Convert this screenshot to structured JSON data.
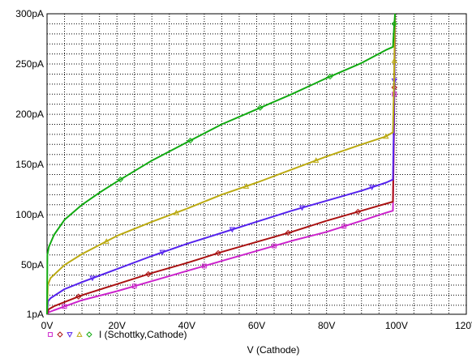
{
  "chart_data": {
    "type": "line",
    "xlabel": "V (Cathode)",
    "ylabel": "",
    "xlim": [
      0,
      120
    ],
    "ylim": [
      1,
      300
    ],
    "grid": true,
    "x_ticks": [
      0,
      20,
      40,
      60,
      80,
      100,
      120
    ],
    "x_tick_labels": [
      "0V",
      "20V",
      "40V",
      "60V",
      "80V",
      "100V",
      "120V"
    ],
    "y_ticks": [
      1,
      50,
      100,
      150,
      200,
      250,
      300
    ],
    "y_tick_labels": [
      "1pA",
      "50pA",
      "100pA",
      "150pA",
      "200pA",
      "250pA",
      "300pA"
    ],
    "legend": {
      "placement": "bottom-left",
      "markers": [
        "□",
        "◇",
        "▽",
        "△",
        "◇"
      ],
      "label": "I (Schottky,Cathode)"
    },
    "series": [
      {
        "color": "#cc22cc",
        "marker": "square",
        "x": [
          0,
          0.5,
          2,
          10,
          20,
          30,
          40,
          50,
          60,
          70,
          80,
          90,
          97,
          99,
          99.3,
          99.6
        ],
        "y": [
          1,
          3,
          5,
          15,
          24,
          34,
          44,
          54,
          64,
          74,
          83,
          94,
          102,
          104,
          180,
          300
        ]
      },
      {
        "color": "#aa1111",
        "marker": "diamond",
        "x": [
          0,
          0.5,
          2,
          10,
          20,
          30,
          40,
          50,
          60,
          70,
          80,
          90,
          97,
          99,
          99.3,
          99.6
        ],
        "y": [
          1,
          6,
          9,
          20,
          31,
          42,
          52,
          63,
          73,
          83,
          94,
          104,
          111,
          113,
          190,
          300
        ]
      },
      {
        "color": "#5522ee",
        "marker": "triangle-down",
        "x": [
          0,
          0.3,
          1,
          5,
          10,
          20,
          30,
          40,
          50,
          60,
          70,
          80,
          90,
          97,
          99,
          99.3,
          99.6
        ],
        "y": [
          1,
          14,
          17,
          26,
          33,
          46,
          59,
          71,
          82,
          93,
          104,
          114,
          124,
          132,
          135,
          200,
          300
        ]
      },
      {
        "color": "#bbaa11",
        "marker": "triangle-up",
        "x": [
          0,
          0.2,
          1,
          5,
          10,
          20,
          30,
          40,
          50,
          60,
          70,
          80,
          90,
          97,
          99,
          99.3,
          99.6
        ],
        "y": [
          1,
          30,
          37,
          50,
          61,
          79,
          93,
          106,
          120,
          132,
          145,
          158,
          170,
          178,
          182,
          230,
          300
        ]
      },
      {
        "color": "#11aa11",
        "marker": "diamond",
        "x": [
          0,
          0.1,
          0.5,
          2,
          5,
          10,
          15,
          20,
          30,
          40,
          50,
          60,
          70,
          80,
          90,
          97,
          99,
          99.3,
          99.6
        ],
        "y": [
          1,
          60,
          68,
          80,
          95,
          110,
          122,
          133,
          154,
          172,
          190,
          205,
          220,
          236,
          251,
          264,
          267,
          285,
          300
        ]
      }
    ]
  }
}
